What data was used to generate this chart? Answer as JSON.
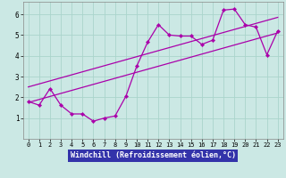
{
  "xlabel": "Windchill (Refroidissement éolien,°C)",
  "bg_color": "#cbe8e4",
  "grid_color": "#aad4cc",
  "line_color": "#aa00aa",
  "xlabel_bg": "#3333aa",
  "xlabel_fg": "#ffffff",
  "xlim": [
    -0.5,
    23.5
  ],
  "ylim": [
    0,
    6.6
  ],
  "xticks": [
    0,
    1,
    2,
    3,
    4,
    5,
    6,
    7,
    8,
    9,
    10,
    11,
    12,
    13,
    14,
    15,
    16,
    17,
    18,
    19,
    20,
    21,
    22,
    23
  ],
  "yticks": [
    1,
    2,
    3,
    4,
    5,
    6
  ],
  "series1_x": [
    0,
    1,
    2,
    3,
    4,
    5,
    6,
    7,
    8,
    9,
    10,
    11,
    12,
    13,
    14,
    15,
    16,
    17,
    18,
    19,
    20,
    21,
    22,
    23
  ],
  "series1_y": [
    1.8,
    1.62,
    2.42,
    1.62,
    1.2,
    1.2,
    0.85,
    1.0,
    1.1,
    2.05,
    3.5,
    4.65,
    5.5,
    5.0,
    4.95,
    4.95,
    4.55,
    4.75,
    6.2,
    6.25,
    5.5,
    5.38,
    4.05,
    5.2
  ],
  "series2_x": [
    0,
    23
  ],
  "series2_y": [
    1.75,
    5.1
  ],
  "series3_x": [
    0,
    23
  ],
  "series3_y": [
    2.5,
    5.85
  ]
}
